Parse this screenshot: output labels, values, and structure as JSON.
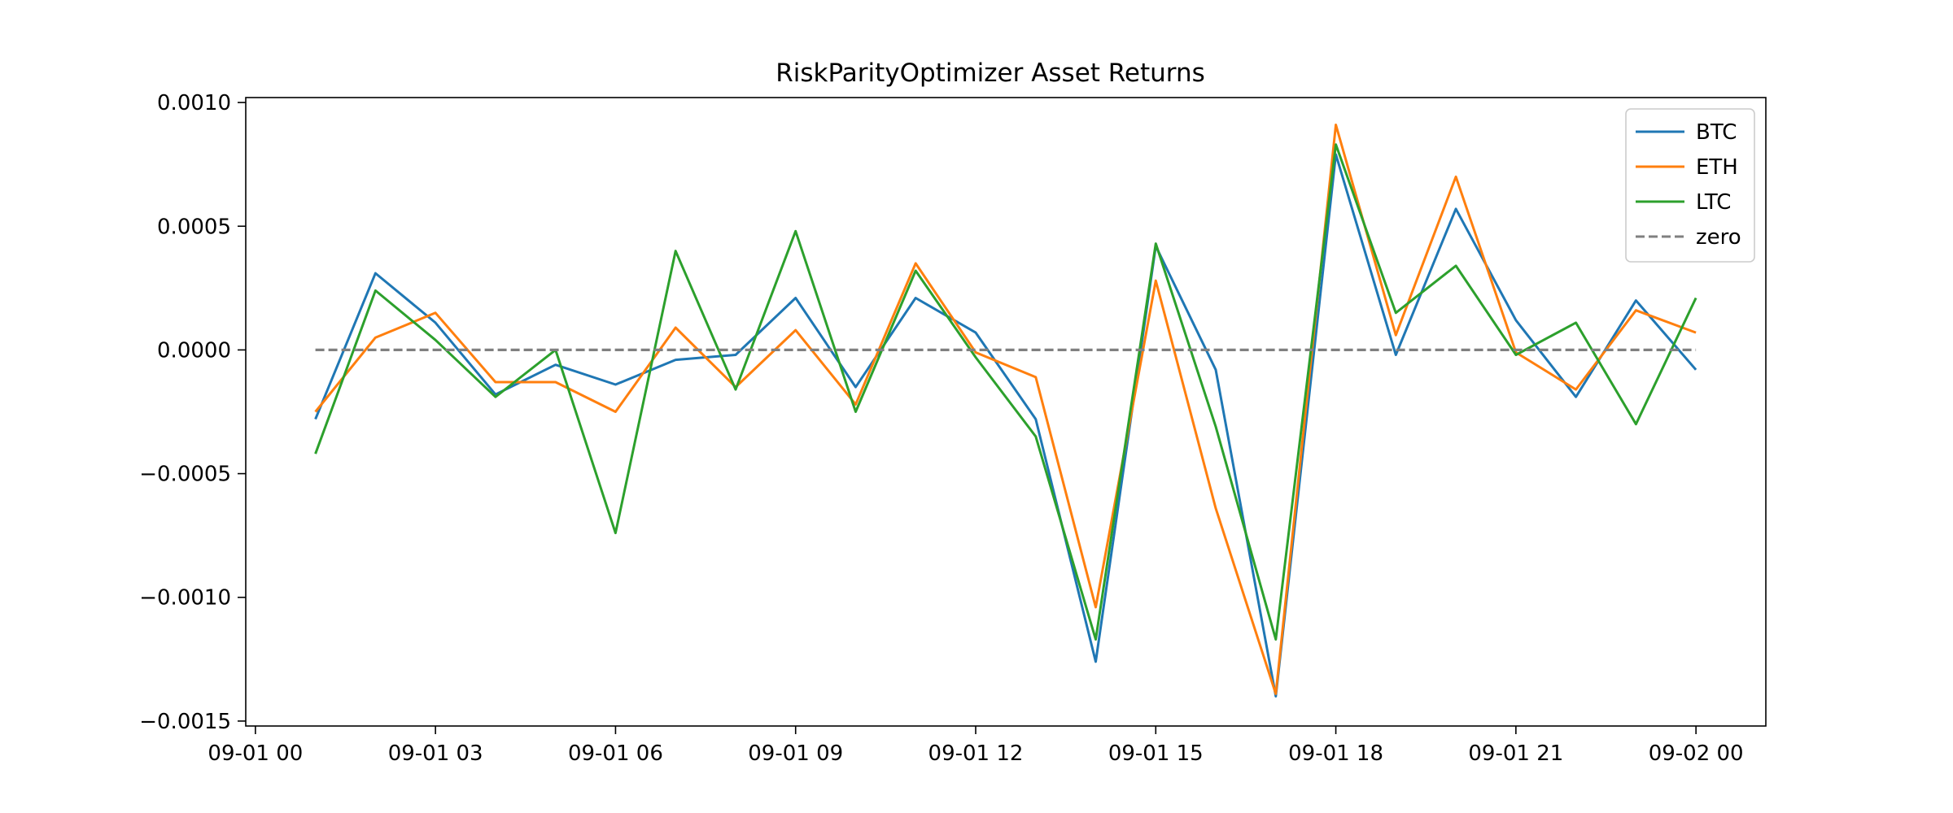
{
  "chart_data": {
    "type": "line",
    "title": "RiskParityOptimizer Asset Returns",
    "xlabel": "",
    "ylabel": "",
    "x": [
      "2023-09-01 01:00",
      "2023-09-01 02:00",
      "2023-09-01 03:00",
      "2023-09-01 04:00",
      "2023-09-01 05:00",
      "2023-09-01 06:00",
      "2023-09-01 07:00",
      "2023-09-01 08:00",
      "2023-09-01 09:00",
      "2023-09-01 10:00",
      "2023-09-01 11:00",
      "2023-09-01 12:00",
      "2023-09-01 13:00",
      "2023-09-01 14:00",
      "2023-09-01 15:00",
      "2023-09-01 16:00",
      "2023-09-01 17:00",
      "2023-09-01 18:00",
      "2023-09-01 19:00",
      "2023-09-01 20:00",
      "2023-09-01 21:00",
      "2023-09-01 22:00",
      "2023-09-01 23:00",
      "2023-09-02 00:00"
    ],
    "xlim": [
      "2023-09-01 00:00",
      "2023-09-02 00:00"
    ],
    "ylim": [
      -0.0015,
      0.001
    ],
    "x_ticks": [
      {
        "t": "2023-09-01 00:00",
        "label": "09-01 00"
      },
      {
        "t": "2023-09-01 03:00",
        "label": "09-01 03"
      },
      {
        "t": "2023-09-01 06:00",
        "label": "09-01 06"
      },
      {
        "t": "2023-09-01 09:00",
        "label": "09-01 09"
      },
      {
        "t": "2023-09-01 12:00",
        "label": "09-01 12"
      },
      {
        "t": "2023-09-01 15:00",
        "label": "09-01 15"
      },
      {
        "t": "2023-09-01 18:00",
        "label": "09-01 18"
      },
      {
        "t": "2023-09-01 21:00",
        "label": "09-01 21"
      },
      {
        "t": "2023-09-02 00:00",
        "label": "09-02 00"
      }
    ],
    "y_ticks": [
      {
        "v": 0.001,
        "label": "0.0010"
      },
      {
        "v": 0.0005,
        "label": "0.0005"
      },
      {
        "v": 0.0,
        "label": "0.0000"
      },
      {
        "v": -0.0005,
        "label": "−0.0005"
      },
      {
        "v": -0.001,
        "label": "−0.0010"
      },
      {
        "v": -0.0015,
        "label": "−0.0015"
      }
    ],
    "grid": false,
    "legend_position": "top-right",
    "series": [
      {
        "name": "BTC",
        "color": "#1f77b4",
        "style": "solid",
        "values": [
          -0.00028,
          0.00031,
          0.00011,
          -0.00018,
          -6e-05,
          -0.00014,
          -4e-05,
          -2e-05,
          0.00021,
          -0.00015,
          0.00021,
          7e-05,
          -0.00028,
          -0.00126,
          0.00042,
          -8e-05,
          -0.0014,
          0.00079,
          -2e-05,
          0.00057,
          0.00012,
          -0.00019,
          0.0002,
          -8e-05
        ]
      },
      {
        "name": "ETH",
        "color": "#ff7f0e",
        "style": "solid",
        "values": [
          -0.00025,
          5e-05,
          0.00015,
          -0.00013,
          -0.00013,
          -0.00025,
          9e-05,
          -0.00015,
          8e-05,
          -0.00022,
          0.00035,
          -1e-05,
          -0.00011,
          -0.00104,
          0.00028,
          -0.00064,
          -0.00139,
          0.00091,
          6e-05,
          0.0007,
          -1e-05,
          -0.00016,
          0.00016,
          7e-05
        ]
      },
      {
        "name": "LTC",
        "color": "#2ca02c",
        "style": "solid",
        "values": [
          -0.00042,
          0.00024,
          4e-05,
          -0.00019,
          0.0,
          -0.00074,
          0.0004,
          -0.00016,
          0.00048,
          -0.00025,
          0.00032,
          -3e-05,
          -0.00035,
          -0.00117,
          0.00043,
          -0.00031,
          -0.00117,
          0.00083,
          0.00015,
          0.00034,
          -2e-05,
          0.00011,
          -0.0003,
          0.00021
        ]
      },
      {
        "name": "zero",
        "color": "#808080",
        "style": "dashed",
        "values": [
          0,
          0,
          0,
          0,
          0,
          0,
          0,
          0,
          0,
          0,
          0,
          0,
          0,
          0,
          0,
          0,
          0,
          0,
          0,
          0,
          0,
          0,
          0,
          0
        ]
      }
    ]
  }
}
